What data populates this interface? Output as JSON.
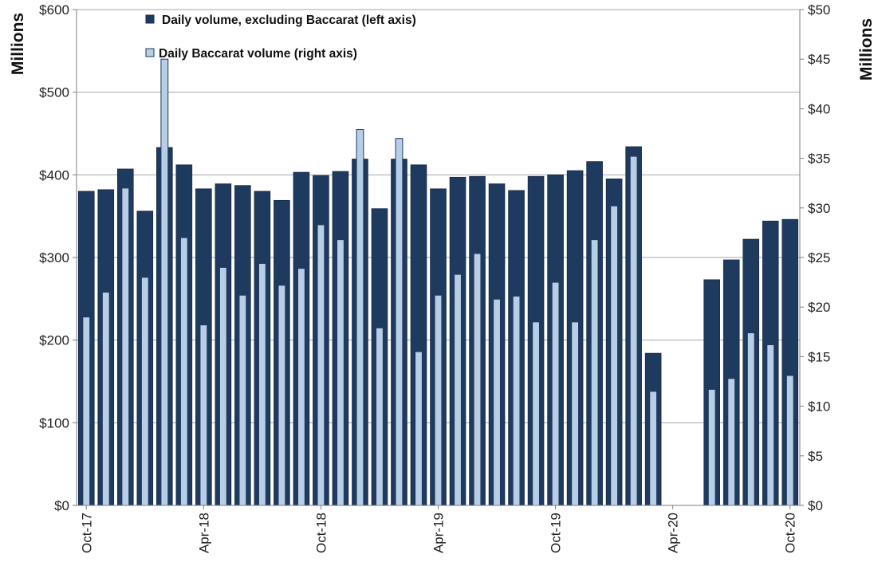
{
  "chart_data": {
    "type": "bar",
    "categories": [
      "Oct-17",
      "Nov-17",
      "Dec-17",
      "Jan-18",
      "Feb-18",
      "Mar-18",
      "Apr-18",
      "May-18",
      "Jun-18",
      "Jul-18",
      "Aug-18",
      "Sep-18",
      "Oct-18",
      "Nov-18",
      "Dec-18",
      "Jan-19",
      "Feb-19",
      "Mar-19",
      "Apr-19",
      "May-19",
      "Jun-19",
      "Jul-19",
      "Aug-19",
      "Sep-19",
      "Oct-19",
      "Nov-19",
      "Dec-19",
      "Jan-20",
      "Feb-20",
      "Mar-20",
      "Apr-20",
      "May-20",
      "Jun-20",
      "Jul-20",
      "Aug-20",
      "Sep-20",
      "Oct-20"
    ],
    "x_tick_labels": [
      "Oct-17",
      "Apr-18",
      "Oct-18",
      "Apr-19",
      "Oct-19",
      "Apr-20",
      "Oct-20"
    ],
    "x_tick_label_indices": [
      0,
      6,
      12,
      18,
      24,
      30,
      36
    ],
    "series": [
      {
        "name": "Daily volume, excluding Baccarat (left axis)",
        "axis": "left",
        "color": "#1f3a5f",
        "values": [
          380,
          382,
          407,
          356,
          433,
          412,
          383,
          389,
          387,
          380,
          369,
          403,
          399,
          404,
          419,
          359,
          419,
          412,
          383,
          397,
          398,
          389,
          381,
          398,
          400,
          405,
          416,
          395,
          434,
          184,
          null,
          null,
          273,
          297,
          322,
          344,
          346
        ]
      },
      {
        "name": "Daily Baccarat volume (right axis)",
        "axis": "right",
        "color": "#b8cde6",
        "values": [
          19,
          21.5,
          32,
          23,
          45,
          27,
          18.2,
          24,
          21.2,
          24.4,
          22.2,
          23.9,
          28.3,
          26.8,
          37.9,
          17.9,
          37,
          15.5,
          21.2,
          23.3,
          25.4,
          20.8,
          21.1,
          18.5,
          22.5,
          18.5,
          26.8,
          30.2,
          35.2,
          11.5,
          null,
          null,
          11.7,
          12.8,
          17.4,
          16.2,
          13.1
        ]
      }
    ],
    "left_axis": {
      "title": "Millions",
      "ylim": [
        0,
        600
      ],
      "ticks": [
        "$0",
        "$100",
        "$200",
        "$300",
        "$400",
        "$500",
        "$600"
      ]
    },
    "right_axis": {
      "title": "Millions",
      "ylim": [
        0,
        50
      ],
      "ticks": [
        "$0",
        "$5",
        "$10",
        "$15",
        "$20",
        "$25",
        "$30",
        "$35",
        "$40",
        "$45",
        "$50"
      ]
    },
    "grid": true,
    "legend": "top-left"
  }
}
